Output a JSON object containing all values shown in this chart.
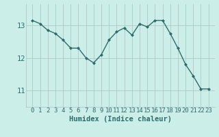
{
  "x": [
    0,
    1,
    2,
    3,
    4,
    5,
    6,
    7,
    8,
    9,
    10,
    11,
    12,
    13,
    14,
    15,
    16,
    17,
    18,
    19,
    20,
    21,
    22,
    23
  ],
  "y": [
    13.15,
    13.05,
    12.85,
    12.75,
    12.55,
    12.3,
    12.3,
    12.0,
    11.85,
    12.1,
    12.55,
    12.8,
    12.92,
    12.7,
    13.05,
    12.95,
    13.15,
    13.15,
    12.75,
    12.3,
    11.8,
    11.45,
    11.05,
    11.05
  ],
  "line_color": "#2e6b6b",
  "marker": "D",
  "marker_size": 2.0,
  "bg_color": "#cceee8",
  "grid_color": "#b0c8c8",
  "xlabel": "Humidex (Indice chaleur)",
  "ylim": [
    10.5,
    13.65
  ],
  "yticks": [
    11,
    12,
    13
  ],
  "xtick_labels": [
    "0",
    "1",
    "2",
    "3",
    "4",
    "5",
    "6",
    "7",
    "8",
    "9",
    "10",
    "11",
    "12",
    "13",
    "14",
    "15",
    "16",
    "17",
    "18",
    "19",
    "20",
    "21",
    "22",
    "23"
  ],
  "font_color": "#2e6b6b",
  "xlabel_fontsize": 7.5,
  "tick_fontsize": 6.5,
  "linewidth": 1.0
}
